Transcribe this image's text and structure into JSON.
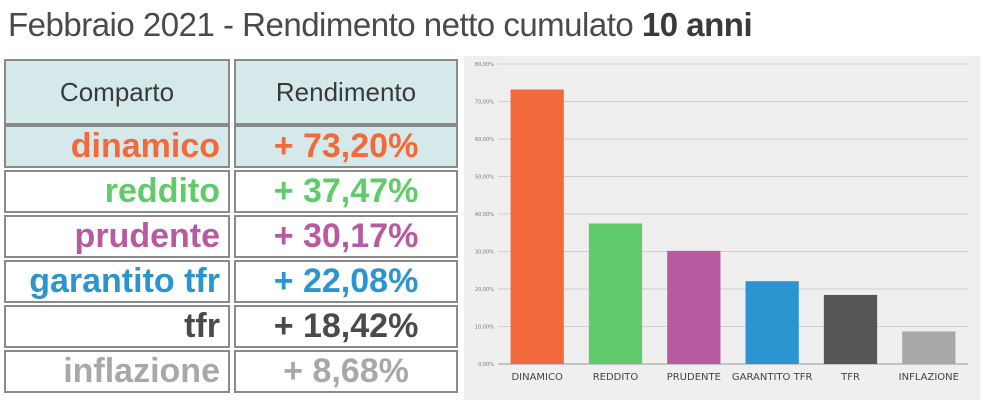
{
  "title": {
    "prefix": "Febbraio 2021 - Rendimento netto cumulato",
    "bold": "10 anni"
  },
  "table": {
    "headers": [
      "Comparto",
      "Rendimento"
    ],
    "rows": [
      {
        "name": "dinamico",
        "value": "+ 73,20%",
        "color": "#f26a3b"
      },
      {
        "name": "reddito",
        "value": "+ 37,47%",
        "color": "#5fcb6a"
      },
      {
        "name": "prudente",
        "value": "+ 30,17%",
        "color": "#b85aa2"
      },
      {
        "name": "garantito tfr",
        "value": "+ 22,08%",
        "color": "#2a95d0"
      },
      {
        "name": "tfr",
        "value": "+ 18,42%",
        "color": "#4a4a4a"
      },
      {
        "name": "inflazione",
        "value": "+ 8,68%",
        "color": "#a8a8a8"
      }
    ]
  },
  "chart_data": {
    "type": "bar",
    "categories": [
      "DINAMICO",
      "REDDITO",
      "PRUDENTE",
      "GARANTITO TFR",
      "TFR",
      "INFLAZIONE"
    ],
    "values": [
      73.2,
      37.47,
      30.17,
      22.08,
      18.42,
      8.68
    ],
    "colors": [
      "#f26a3b",
      "#5fcb6a",
      "#b85aa2",
      "#2a95d0",
      "#555555",
      "#a8a8a8"
    ],
    "ylim": [
      0,
      80
    ],
    "yticks": [
      "0,00%",
      "10,00%",
      "20,00%",
      "30,00%",
      "40,00%",
      "50,00%",
      "60,00%",
      "70,00%",
      "80,00%"
    ],
    "grid": true,
    "background": "#efefef"
  }
}
